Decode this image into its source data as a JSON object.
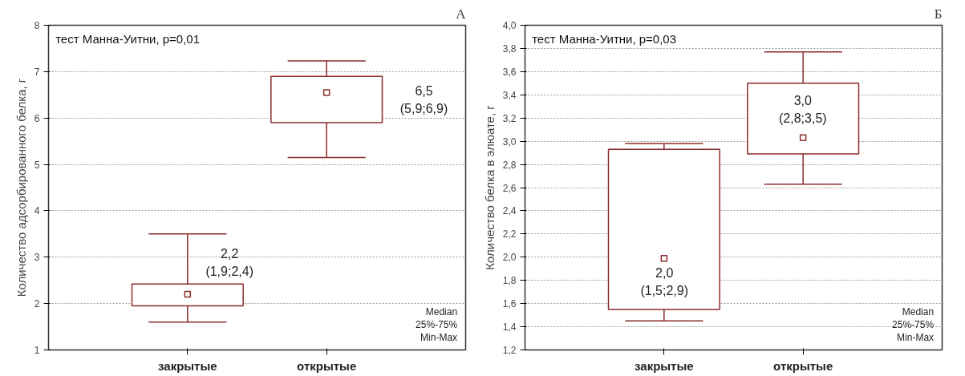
{
  "chart_data": [
    {
      "type": "box",
      "categories": [
        "закрытые",
        "открытые"
      ],
      "ylabel": "Количество адсорбированного белка, г",
      "ylim": [
        1,
        8
      ],
      "yticks": [
        1,
        2,
        3,
        4,
        5,
        6,
        7,
        8
      ],
      "grid": "y",
      "marker": "square",
      "series": [
        {
          "color": "#8b2c2c",
          "boxes": [
            {
              "low": 1.6,
              "q1": 1.95,
              "median": 2.2,
              "q3": 2.42,
              "high": 3.5
            },
            {
              "low": 5.15,
              "q1": 5.9,
              "median": 6.55,
              "q3": 6.9,
              "high": 7.23
            }
          ]
        }
      ],
      "annotations": [
        "тест Манна-Уитни, p=0,01",
        "А",
        "2,2\n(1,9;2,4)",
        "6,5\n(5,9;6,9)",
        "Median",
        "25%-75%",
        "Min-Max"
      ]
    },
    {
      "type": "box",
      "categories": [
        "закрытые",
        "открытые"
      ],
      "ylabel": "Количество белка в элюате, г",
      "ylim": [
        1.2,
        4.0
      ],
      "yticks": [
        {
          "value": 1.2,
          "label": "1,2"
        },
        {
          "value": 1.4,
          "label": "1,4"
        },
        {
          "value": 1.6,
          "label": "1,6"
        },
        {
          "value": 1.8,
          "label": "1,8"
        },
        {
          "value": 2.0,
          "label": "2,0"
        },
        {
          "value": 2.2,
          "label": "2,2"
        },
        {
          "value": 2.4,
          "label": "2,4"
        },
        {
          "value": 2.6,
          "label": "2,6"
        },
        {
          "value": 2.8,
          "label": "2,8"
        },
        {
          "value": 3.0,
          "label": "3,0"
        },
        {
          "value": 3.2,
          "label": "3,2"
        },
        {
          "value": 3.4,
          "label": "3,4"
        },
        {
          "value": 3.6,
          "label": "3,6"
        },
        {
          "value": 3.8,
          "label": "3,8"
        },
        {
          "value": 4.0,
          "label": "4,0"
        }
      ],
      "grid": "y",
      "marker": "square",
      "series": [
        {
          "color": "#8b2c2c",
          "boxes": [
            {
              "low": 1.45,
              "q1": 1.55,
              "median": 1.99,
              "q3": 2.93,
              "high": 2.98
            },
            {
              "low": 2.63,
              "q1": 2.89,
              "median": 3.03,
              "q3": 3.5,
              "high": 3.77
            }
          ]
        }
      ],
      "annotations": [
        "тест Манна-Уитни, p=0,03",
        "Б",
        "2,0\n(1,5;2,9)",
        "3,0\n(2,8;3,5)",
        "Median",
        "25%-75%",
        "Min-Max"
      ]
    }
  ]
}
